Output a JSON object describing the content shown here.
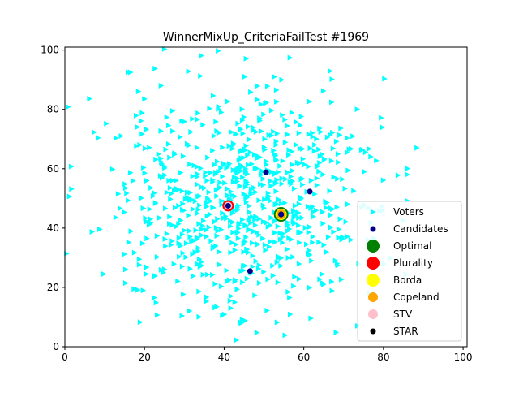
{
  "chart_data": {
    "type": "scatter",
    "title": "WinnerMixUp_CriteriaFailTest #1969",
    "xlim": [
      0,
      101
    ],
    "ylim": [
      0,
      101
    ],
    "x_ticks": [
      0,
      20,
      40,
      60,
      80,
      100
    ],
    "y_ticks": [
      0,
      20,
      40,
      60,
      80,
      100
    ],
    "grid": false,
    "legend_position": "lower-right",
    "voters": {
      "name": "Voters",
      "color": "#00ffff",
      "marker": "triangle-right",
      "cluster_center": [
        45,
        50
      ],
      "spread": [
        17,
        20
      ],
      "count": 800
    },
    "candidates": {
      "name": "Candidates",
      "color": "#00008b",
      "points": [
        {
          "x": 50.5,
          "y": 58.8
        },
        {
          "x": 61.5,
          "y": 52.3
        },
        {
          "x": 46.5,
          "y": 25.5
        },
        {
          "x": 41,
          "y": 47.5
        },
        {
          "x": 54.3,
          "y": 44.6
        }
      ]
    },
    "winners": [
      {
        "name": "Optimal",
        "color": "#008000",
        "x": 54.3,
        "y": 44.6
      },
      {
        "name": "Plurality",
        "color": "#ff0000",
        "x": 41,
        "y": 47.5
      },
      {
        "name": "Borda",
        "color": "#ffff00",
        "x": 54.3,
        "y": 44.6
      },
      {
        "name": "Copeland",
        "color": "#ffa500",
        "x": 54.3,
        "y": 44.6
      },
      {
        "name": "STV",
        "color": "#ffc0cb",
        "x": 41,
        "y": 47.5
      },
      {
        "name": "STAR",
        "color": "#000000",
        "x": 54.3,
        "y": 44.6
      }
    ],
    "legend": [
      {
        "label": "Voters",
        "color": "#00ffff",
        "marker": "triangle-right"
      },
      {
        "label": "Candidates",
        "color": "#00008b",
        "marker": "small-dot"
      },
      {
        "label": "Optimal",
        "color": "#008000",
        "marker": "large-dot"
      },
      {
        "label": "Plurality",
        "color": "#ff0000",
        "marker": "large-dot"
      },
      {
        "label": "Borda",
        "color": "#ffff00",
        "marker": "large-dot"
      },
      {
        "label": "Copeland",
        "color": "#ffa500",
        "marker": "medium-dot"
      },
      {
        "label": "STV",
        "color": "#ffc0cb",
        "marker": "medium-dot"
      },
      {
        "label": "STAR",
        "color": "#000000",
        "marker": "small-dot"
      }
    ]
  }
}
